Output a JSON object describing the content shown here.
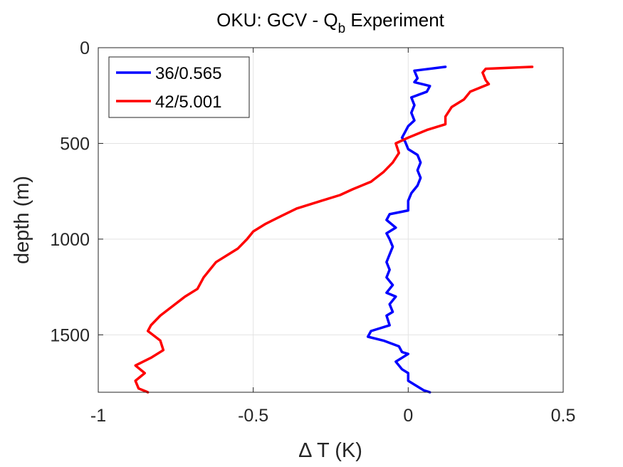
{
  "chart_data": {
    "type": "line",
    "title": "OKU: GCV - Q",
    "title_subscript": "b",
    "title_suffix": " Experiment",
    "xlabel": "Δ T (K)",
    "ylabel": "depth (m)",
    "xlim": [
      -1,
      0.5
    ],
    "ylim": [
      0,
      1800
    ],
    "y_reversed": true,
    "grid": true,
    "legend_position": "top-left",
    "xticks": [
      -1,
      -0.5,
      0,
      0.5
    ],
    "xtick_labels": [
      "-1",
      "-0.5",
      "0",
      "0.5"
    ],
    "yticks": [
      0,
      500,
      1000,
      1500
    ],
    "ytick_labels": [
      "0",
      "500",
      "1000",
      "1500"
    ],
    "series": [
      {
        "name": "36/0.565",
        "color": "#0000ff",
        "points": [
          [
            0.12,
            100
          ],
          [
            0.02,
            120
          ],
          [
            0.03,
            160
          ],
          [
            0.02,
            180
          ],
          [
            0.07,
            200
          ],
          [
            0.06,
            230
          ],
          [
            0.01,
            260
          ],
          [
            0.02,
            300
          ],
          [
            0.01,
            340
          ],
          [
            0.02,
            380
          ],
          [
            0.0,
            410
          ],
          [
            -0.01,
            440
          ],
          [
            -0.02,
            470
          ],
          [
            -0.01,
            490
          ],
          [
            0.0,
            530
          ],
          [
            0.03,
            560
          ],
          [
            0.04,
            600
          ],
          [
            0.03,
            640
          ],
          [
            0.04,
            680
          ],
          [
            0.03,
            720
          ],
          [
            0.01,
            760
          ],
          [
            0.0,
            800
          ],
          [
            0.0,
            850
          ],
          [
            -0.06,
            870
          ],
          [
            -0.07,
            900
          ],
          [
            -0.04,
            940
          ],
          [
            -0.07,
            970
          ],
          [
            -0.06,
            1000
          ],
          [
            -0.05,
            1040
          ],
          [
            -0.06,
            1080
          ],
          [
            -0.07,
            1120
          ],
          [
            -0.06,
            1160
          ],
          [
            -0.07,
            1200
          ],
          [
            -0.05,
            1240
          ],
          [
            -0.07,
            1280
          ],
          [
            -0.04,
            1300
          ],
          [
            -0.06,
            1340
          ],
          [
            -0.05,
            1380
          ],
          [
            -0.07,
            1400
          ],
          [
            -0.06,
            1450
          ],
          [
            -0.12,
            1480
          ],
          [
            -0.13,
            1510
          ],
          [
            -0.08,
            1530
          ],
          [
            -0.03,
            1560
          ],
          [
            -0.02,
            1590
          ],
          [
            0.0,
            1600
          ],
          [
            -0.04,
            1640
          ],
          [
            -0.02,
            1680
          ],
          [
            0.0,
            1700
          ],
          [
            0.0,
            1740
          ],
          [
            0.02,
            1760
          ],
          [
            0.05,
            1790
          ],
          [
            0.07,
            1800
          ]
        ]
      },
      {
        "name": "42/5.001",
        "color": "#ff0000",
        "points": [
          [
            0.4,
            100
          ],
          [
            0.25,
            110
          ],
          [
            0.24,
            130
          ],
          [
            0.25,
            170
          ],
          [
            0.26,
            190
          ],
          [
            0.2,
            230
          ],
          [
            0.18,
            270
          ],
          [
            0.14,
            310
          ],
          [
            0.12,
            360
          ],
          [
            0.12,
            400
          ],
          [
            0.06,
            430
          ],
          [
            0.0,
            470
          ],
          [
            -0.04,
            500
          ],
          [
            -0.03,
            550
          ],
          [
            -0.05,
            600
          ],
          [
            -0.08,
            650
          ],
          [
            -0.12,
            700
          ],
          [
            -0.18,
            740
          ],
          [
            -0.22,
            770
          ],
          [
            -0.28,
            800
          ],
          [
            -0.36,
            840
          ],
          [
            -0.41,
            880
          ],
          [
            -0.46,
            920
          ],
          [
            -0.5,
            960
          ],
          [
            -0.52,
            1000
          ],
          [
            -0.55,
            1050
          ],
          [
            -0.58,
            1080
          ],
          [
            -0.62,
            1120
          ],
          [
            -0.64,
            1160
          ],
          [
            -0.66,
            1200
          ],
          [
            -0.68,
            1260
          ],
          [
            -0.72,
            1300
          ],
          [
            -0.76,
            1350
          ],
          [
            -0.8,
            1400
          ],
          [
            -0.83,
            1450
          ],
          [
            -0.84,
            1480
          ],
          [
            -0.8,
            1530
          ],
          [
            -0.79,
            1580
          ],
          [
            -0.83,
            1620
          ],
          [
            -0.88,
            1660
          ],
          [
            -0.85,
            1700
          ],
          [
            -0.88,
            1740
          ],
          [
            -0.87,
            1780
          ],
          [
            -0.84,
            1800
          ]
        ]
      }
    ]
  }
}
